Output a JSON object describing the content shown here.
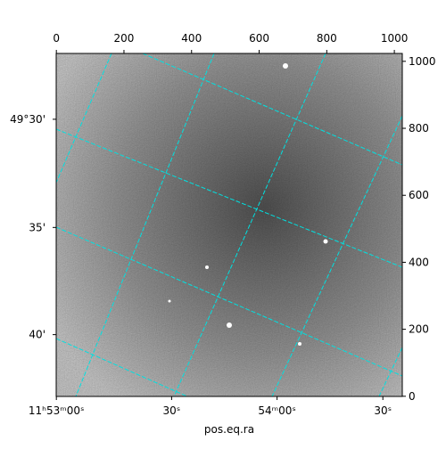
{
  "chart_data": {
    "type": "image",
    "xlabel": "pos.eq.ra",
    "xlim": [
      -0.5,
      1023.5
    ],
    "ylim": [
      -0.5,
      1023.5
    ],
    "xticks": [
      0,
      200,
      400,
      600,
      800,
      1000
    ],
    "yticks": [
      0,
      200,
      400,
      600,
      800,
      1000
    ],
    "ra_ticks": [
      {
        "value": 0,
        "label": "11ʰ53ᵐ00ˢ"
      },
      {
        "value": 341,
        "label": "30ˢ"
      },
      {
        "value": 653,
        "label": "54ᵐ00ˢ"
      },
      {
        "value": 966,
        "label": "30ˢ"
      }
    ],
    "dec_ticks": [
      {
        "value": 827,
        "label": "49°30'"
      },
      {
        "value": 504,
        "label": "35'"
      },
      {
        "value": 184,
        "label": "40'"
      }
    ],
    "grid_color": "#00e0e0"
  }
}
